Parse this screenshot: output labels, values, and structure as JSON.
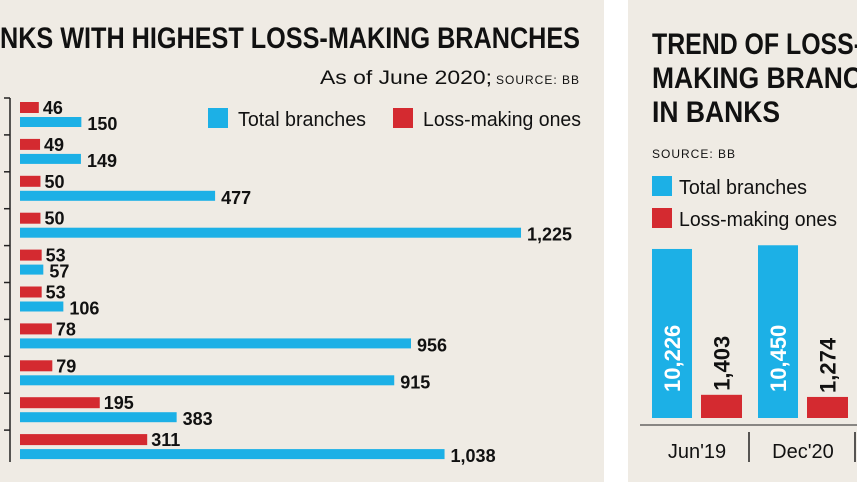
{
  "chart_data": [
    {
      "type": "bar",
      "orientation": "horizontal",
      "title": "NKS WITH HIGHEST LOSS-MAKING BRANCHES",
      "note": "As of June 2020;",
      "source": "SOURCE: BB",
      "categories": [
        null,
        null,
        null,
        null,
        null,
        null,
        null,
        null,
        null,
        null
      ],
      "series": [
        {
          "name": "Total branches",
          "color": "#1cb0e6",
          "values": [
            150,
            149,
            477,
            1225,
            57,
            106,
            956,
            915,
            383,
            1038
          ],
          "value_labels": [
            "150",
            "149",
            "477",
            "1,225",
            "57",
            "106",
            "956",
            "915",
            "383",
            "1,038"
          ]
        },
        {
          "name": "Loss-making ones",
          "color": "#d42a30",
          "values": [
            46,
            49,
            50,
            50,
            53,
            53,
            78,
            79,
            195,
            311
          ]
        }
      ]
    },
    {
      "type": "bar",
      "orientation": "vertical",
      "title_lines": [
        "TREND OF LOSS-",
        "MAKING BRANC",
        "IN BANKS"
      ],
      "source": "SOURCE: BB",
      "categories": [
        "Jun'19",
        "Dec'20"
      ],
      "series": [
        {
          "name": "Total branches",
          "color": "#1cb0e6",
          "values": [
            10226,
            10450
          ],
          "value_labels": [
            "10,226",
            "10,450"
          ]
        },
        {
          "name": "Loss-making ones",
          "color": "#d42a30",
          "values": [
            1403,
            1274
          ],
          "value_labels": [
            "1,403",
            "1,274"
          ]
        }
      ]
    }
  ]
}
